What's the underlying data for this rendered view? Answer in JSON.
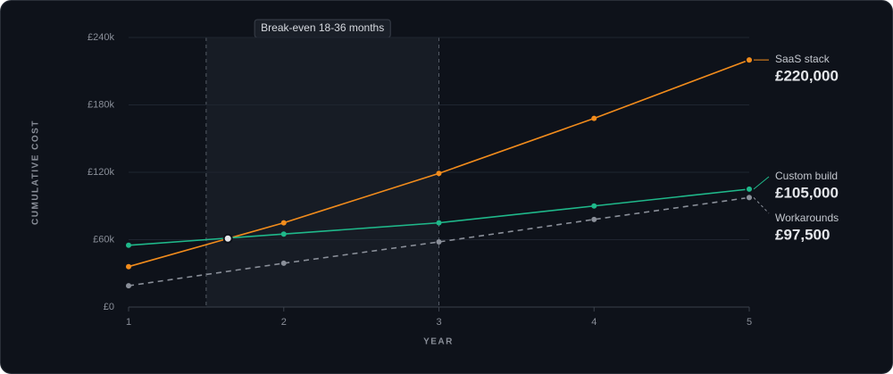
{
  "chart_data": {
    "type": "line",
    "x_label": "YEAR",
    "y_label": "CUMULATIVE COST",
    "x": [
      1,
      2,
      3,
      4,
      5
    ],
    "xlim": [
      1,
      5
    ],
    "xticks": [
      1,
      2,
      3,
      4,
      5
    ],
    "ylim": [
      0,
      240000
    ],
    "yticks": [
      {
        "value": 0,
        "label": "£0"
      },
      {
        "value": 60000,
        "label": "£60k"
      },
      {
        "value": 120000,
        "label": "£120k"
      },
      {
        "value": 180000,
        "label": "£180k"
      },
      {
        "value": 240000,
        "label": "£240k"
      }
    ],
    "grid": true,
    "highlight": {
      "x": [
        1.5,
        3
      ],
      "label": "Break-even 18-36 months"
    },
    "break_even_point": {
      "x": 1.64,
      "y": 61000
    },
    "series": [
      {
        "name": "SaaS stack",
        "color": "#f28c1c",
        "dash": false,
        "values": [
          36000,
          75000,
          119000,
          168000,
          220000
        ],
        "value_labels": [
          null,
          null,
          null,
          null,
          "£220,000"
        ]
      },
      {
        "name": "Custom build",
        "color": "#1fb88a",
        "dash": false,
        "values": [
          55000,
          65000,
          75000,
          90000,
          105000
        ],
        "value_labels": [
          null,
          null,
          null,
          null,
          "£105,000"
        ]
      },
      {
        "name": "Workarounds",
        "color": "#8a8f99",
        "dash": true,
        "values": [
          19000,
          39000,
          58000,
          78000,
          97500
        ],
        "value_labels": [
          null,
          null,
          null,
          null,
          "£97,500"
        ]
      }
    ]
  }
}
